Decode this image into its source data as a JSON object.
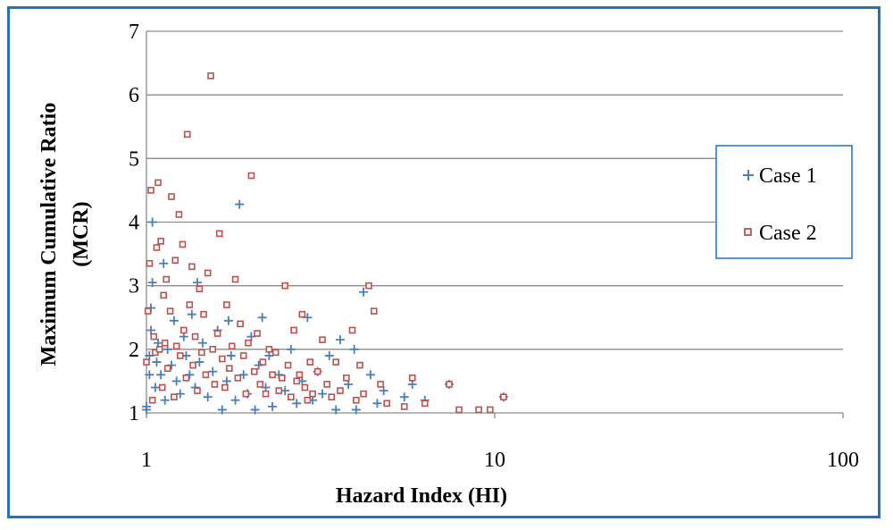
{
  "chart_data": {
    "type": "scatter",
    "xlabel": "Hazard Index (HI)",
    "ylabel": [
      "Maximum Cumulative Ratio",
      "(MCR)"
    ],
    "xscale": "log",
    "xlim": [
      1,
      100
    ],
    "ylim": [
      1,
      7
    ],
    "x_ticks": [
      "1",
      "10",
      "100"
    ],
    "y_ticks": [
      "1",
      "2",
      "3",
      "4",
      "5",
      "6",
      "7"
    ],
    "grid": "horizontal",
    "legend_position": "right",
    "series": [
      {
        "name": "Case 1",
        "marker": "plus",
        "color": "#4a7ebb",
        "points": [
          [
            1.0,
            1.05
          ],
          [
            1.0,
            1.1
          ],
          [
            1.02,
            1.6
          ],
          [
            1.02,
            1.9
          ],
          [
            1.03,
            2.3
          ],
          [
            1.03,
            2.65
          ],
          [
            1.04,
            3.05
          ],
          [
            1.04,
            4.0
          ],
          [
            1.06,
            1.4
          ],
          [
            1.07,
            1.8
          ],
          [
            1.08,
            2.1
          ],
          [
            1.1,
            1.6
          ],
          [
            1.12,
            3.35
          ],
          [
            1.13,
            1.2
          ],
          [
            1.15,
            2.0
          ],
          [
            1.18,
            1.75
          ],
          [
            1.2,
            2.45
          ],
          [
            1.22,
            1.5
          ],
          [
            1.25,
            1.3
          ],
          [
            1.28,
            2.2
          ],
          [
            1.3,
            1.9
          ],
          [
            1.33,
            1.6
          ],
          [
            1.35,
            2.55
          ],
          [
            1.38,
            1.4
          ],
          [
            1.4,
            3.05
          ],
          [
            1.42,
            1.8
          ],
          [
            1.45,
            2.1
          ],
          [
            1.5,
            1.25
          ],
          [
            1.55,
            1.65
          ],
          [
            1.6,
            2.3
          ],
          [
            1.65,
            1.05
          ],
          [
            1.7,
            1.5
          ],
          [
            1.72,
            2.45
          ],
          [
            1.75,
            1.9
          ],
          [
            1.8,
            1.2
          ],
          [
            1.85,
            4.28
          ],
          [
            1.9,
            1.6
          ],
          [
            1.95,
            1.3
          ],
          [
            2.0,
            2.2
          ],
          [
            2.05,
            1.05
          ],
          [
            2.1,
            1.75
          ],
          [
            2.15,
            2.5
          ],
          [
            2.2,
            1.4
          ],
          [
            2.25,
            1.9
          ],
          [
            2.3,
            1.1
          ],
          [
            2.4,
            1.6
          ],
          [
            2.5,
            1.35
          ],
          [
            2.6,
            2.0
          ],
          [
            2.7,
            1.15
          ],
          [
            2.8,
            1.5
          ],
          [
            2.9,
            2.5
          ],
          [
            3.0,
            1.2
          ],
          [
            3.1,
            1.65
          ],
          [
            3.2,
            1.3
          ],
          [
            3.35,
            1.9
          ],
          [
            3.5,
            1.05
          ],
          [
            3.6,
            2.15
          ],
          [
            3.8,
            1.45
          ],
          [
            3.95,
            2.0
          ],
          [
            4.0,
            1.05
          ],
          [
            4.2,
            2.9
          ],
          [
            4.4,
            1.6
          ],
          [
            4.6,
            1.15
          ],
          [
            4.8,
            1.35
          ],
          [
            5.5,
            1.25
          ],
          [
            5.8,
            1.45
          ],
          [
            6.3,
            1.2
          ],
          [
            7.4,
            1.45
          ],
          [
            10.6,
            1.25
          ]
        ]
      },
      {
        "name": "Case 2",
        "marker": "square",
        "color": "#c0504d",
        "points": [
          [
            1.0,
            1.8
          ],
          [
            1.01,
            2.6
          ],
          [
            1.02,
            3.35
          ],
          [
            1.03,
            4.5
          ],
          [
            1.04,
            1.2
          ],
          [
            1.05,
            2.2
          ],
          [
            1.06,
            1.95
          ],
          [
            1.07,
            3.6
          ],
          [
            1.08,
            4.62
          ],
          [
            1.09,
            2.0
          ],
          [
            1.1,
            3.7
          ],
          [
            1.11,
            1.4
          ],
          [
            1.12,
            2.85
          ],
          [
            1.13,
            2.1
          ],
          [
            1.14,
            3.1
          ],
          [
            1.15,
            1.7
          ],
          [
            1.17,
            2.6
          ],
          [
            1.18,
            4.4
          ],
          [
            1.2,
            1.25
          ],
          [
            1.21,
            3.4
          ],
          [
            1.22,
            2.05
          ],
          [
            1.24,
            4.12
          ],
          [
            1.25,
            1.9
          ],
          [
            1.27,
            3.65
          ],
          [
            1.28,
            2.3
          ],
          [
            1.3,
            1.55
          ],
          [
            1.31,
            5.38
          ],
          [
            1.33,
            2.7
          ],
          [
            1.35,
            3.3
          ],
          [
            1.36,
            1.75
          ],
          [
            1.38,
            2.2
          ],
          [
            1.4,
            1.35
          ],
          [
            1.42,
            2.95
          ],
          [
            1.44,
            1.95
          ],
          [
            1.46,
            2.55
          ],
          [
            1.48,
            1.6
          ],
          [
            1.5,
            3.2
          ],
          [
            1.53,
            6.3
          ],
          [
            1.55,
            2.0
          ],
          [
            1.57,
            1.45
          ],
          [
            1.6,
            2.25
          ],
          [
            1.62,
            3.82
          ],
          [
            1.65,
            1.85
          ],
          [
            1.68,
            1.4
          ],
          [
            1.7,
            2.7
          ],
          [
            1.73,
            1.7
          ],
          [
            1.76,
            2.05
          ],
          [
            1.8,
            3.1
          ],
          [
            1.83,
            1.55
          ],
          [
            1.86,
            2.4
          ],
          [
            1.9,
            1.9
          ],
          [
            1.93,
            1.3
          ],
          [
            1.96,
            2.1
          ],
          [
            2.0,
            4.73
          ],
          [
            2.04,
            1.65
          ],
          [
            2.08,
            2.25
          ],
          [
            2.12,
            1.45
          ],
          [
            2.16,
            1.8
          ],
          [
            2.2,
            1.3
          ],
          [
            2.25,
            2.0
          ],
          [
            2.3,
            1.6
          ],
          [
            2.35,
            1.95
          ],
          [
            2.4,
            1.35
          ],
          [
            2.45,
            1.55
          ],
          [
            2.5,
            3.0
          ],
          [
            2.55,
            1.75
          ],
          [
            2.6,
            1.25
          ],
          [
            2.65,
            2.3
          ],
          [
            2.7,
            1.5
          ],
          [
            2.75,
            1.6
          ],
          [
            2.8,
            2.55
          ],
          [
            2.85,
            1.4
          ],
          [
            2.9,
            1.2
          ],
          [
            2.95,
            1.8
          ],
          [
            3.0,
            1.3
          ],
          [
            3.1,
            1.65
          ],
          [
            3.2,
            2.15
          ],
          [
            3.3,
            1.45
          ],
          [
            3.4,
            1.25
          ],
          [
            3.5,
            1.8
          ],
          [
            3.6,
            1.35
          ],
          [
            3.75,
            1.55
          ],
          [
            3.9,
            2.3
          ],
          [
            4.0,
            1.2
          ],
          [
            4.1,
            1.75
          ],
          [
            4.2,
            1.3
          ],
          [
            4.35,
            3.0
          ],
          [
            4.5,
            2.6
          ],
          [
            4.7,
            1.45
          ],
          [
            4.9,
            1.15
          ],
          [
            5.5,
            1.1
          ],
          [
            5.8,
            1.55
          ],
          [
            6.3,
            1.15
          ],
          [
            7.4,
            1.45
          ],
          [
            7.9,
            1.05
          ],
          [
            9.0,
            1.05
          ],
          [
            9.7,
            1.05
          ],
          [
            10.6,
            1.25
          ]
        ]
      }
    ]
  }
}
